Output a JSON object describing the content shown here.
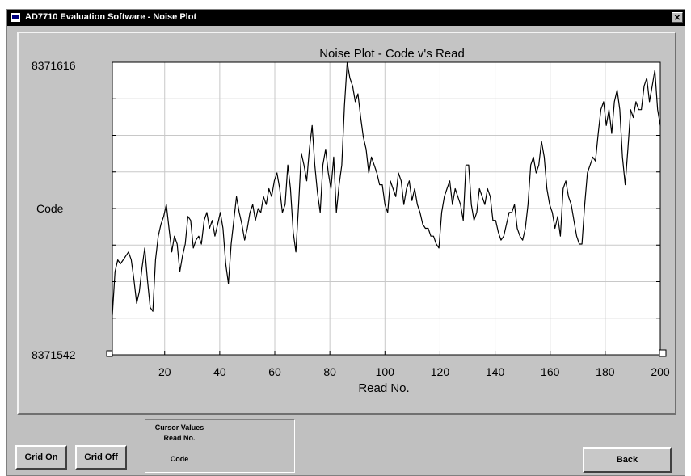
{
  "window": {
    "title": "AD7710 Evaluation Software - Noise Plot",
    "close_glyph": "✕"
  },
  "controls": {
    "grid_on_label": "Grid On",
    "grid_off_label": "Grid Off",
    "back_label": "Back"
  },
  "cursor_values": {
    "heading": "Cursor Values",
    "read_no_label": "Read No.",
    "code_label": "Code"
  },
  "colors": {
    "window_bg": "#c0c0c0",
    "plot_bg": "#ffffff",
    "title_bar": "#000000",
    "trace": "#000000",
    "grid": "#c8c8c8"
  },
  "chart_data": {
    "type": "line",
    "title": "Noise Plot - Code v's Read",
    "xlabel": "Read No.",
    "ylabel": "Code",
    "xlim": [
      1,
      200
    ],
    "ylim": [
      8371542,
      8371616
    ],
    "x_ticks": [
      20,
      40,
      60,
      80,
      100,
      120,
      140,
      160,
      180,
      200
    ],
    "y_tick_labels": [
      "8371616",
      "8371542"
    ],
    "grid": true,
    "series": [
      {
        "values": [
          8371552,
          8371563,
          8371566,
          8371565,
          8371566,
          8371567,
          8371568,
          8371566,
          8371561,
          8371555,
          8371558,
          8371564,
          8371569,
          8371561,
          8371554,
          8371553,
          8371566,
          8371572,
          8371575,
          8371577,
          8371580,
          8371574,
          8371568,
          8371572,
          8371570,
          8371563,
          8371567,
          8371570,
          8371577,
          8371576,
          8371569,
          8371571,
          8371572,
          8371570,
          8371576,
          8371578,
          8371574,
          8371576,
          8371572,
          8371575,
          8371578,
          8371574,
          8371565,
          8371560,
          8371570,
          8371576,
          8371582,
          8371578,
          8371575,
          8371571,
          8371574,
          8371578,
          8371580,
          8371576,
          8371579,
          8371578,
          8371582,
          8371580,
          8371584,
          8371582,
          8371586,
          8371588,
          8371584,
          8371578,
          8371580,
          8371590,
          8371584,
          8371573,
          8371568,
          8371580,
          8371593,
          8371590,
          8371586,
          8371594,
          8371600,
          8371590,
          8371583,
          8371578,
          8371590,
          8371594,
          8371588,
          8371584,
          8371592,
          8371578,
          8371585,
          8371590,
          8371605,
          8371616,
          8371612,
          8371610,
          8371606,
          8371608,
          8371602,
          8371597,
          8371594,
          8371588,
          8371592,
          8371590,
          8371588,
          8371585,
          8371585,
          8371580,
          8371578,
          8371586,
          8371584,
          8371582,
          8371588,
          8371586,
          8371580,
          8371584,
          8371586,
          8371581,
          8371584,
          8371580,
          8371578,
          8371575,
          8371574,
          8371574,
          8371572,
          8371572,
          8371570,
          8371569,
          8371578,
          8371582,
          8371584,
          8371586,
          8371580,
          8371584,
          8371582,
          8371580,
          8371576,
          8371590,
          8371590,
          8371580,
          8371576,
          8371578,
          8371584,
          8371582,
          8371580,
          8371584,
          8371582,
          8371576,
          8371576,
          8371573,
          8371571,
          8371572,
          8371575,
          8371578,
          8371578,
          8371580,
          8371574,
          8371572,
          8371571,
          8371574,
          8371580,
          8371590,
          8371592,
          8371588,
          8371590,
          8371596,
          8371592,
          8371584,
          8371580,
          8371578,
          8371574,
          8371577,
          8371572,
          8371584,
          8371586,
          8371582,
          8371580,
          8371576,
          8371572,
          8371570,
          8371570,
          8371580,
          8371588,
          8371590,
          8371592,
          8371591,
          8371598,
          8371604,
          8371606,
          8371600,
          8371604,
          8371598,
          8371606,
          8371609,
          8371604,
          8371592,
          8371585,
          8371594,
          8371604,
          8371602,
          8371606,
          8371604,
          8371604,
          8371610,
          8371612,
          8371606,
          8371610,
          8371614,
          8371604,
          8371600
        ]
      }
    ]
  }
}
